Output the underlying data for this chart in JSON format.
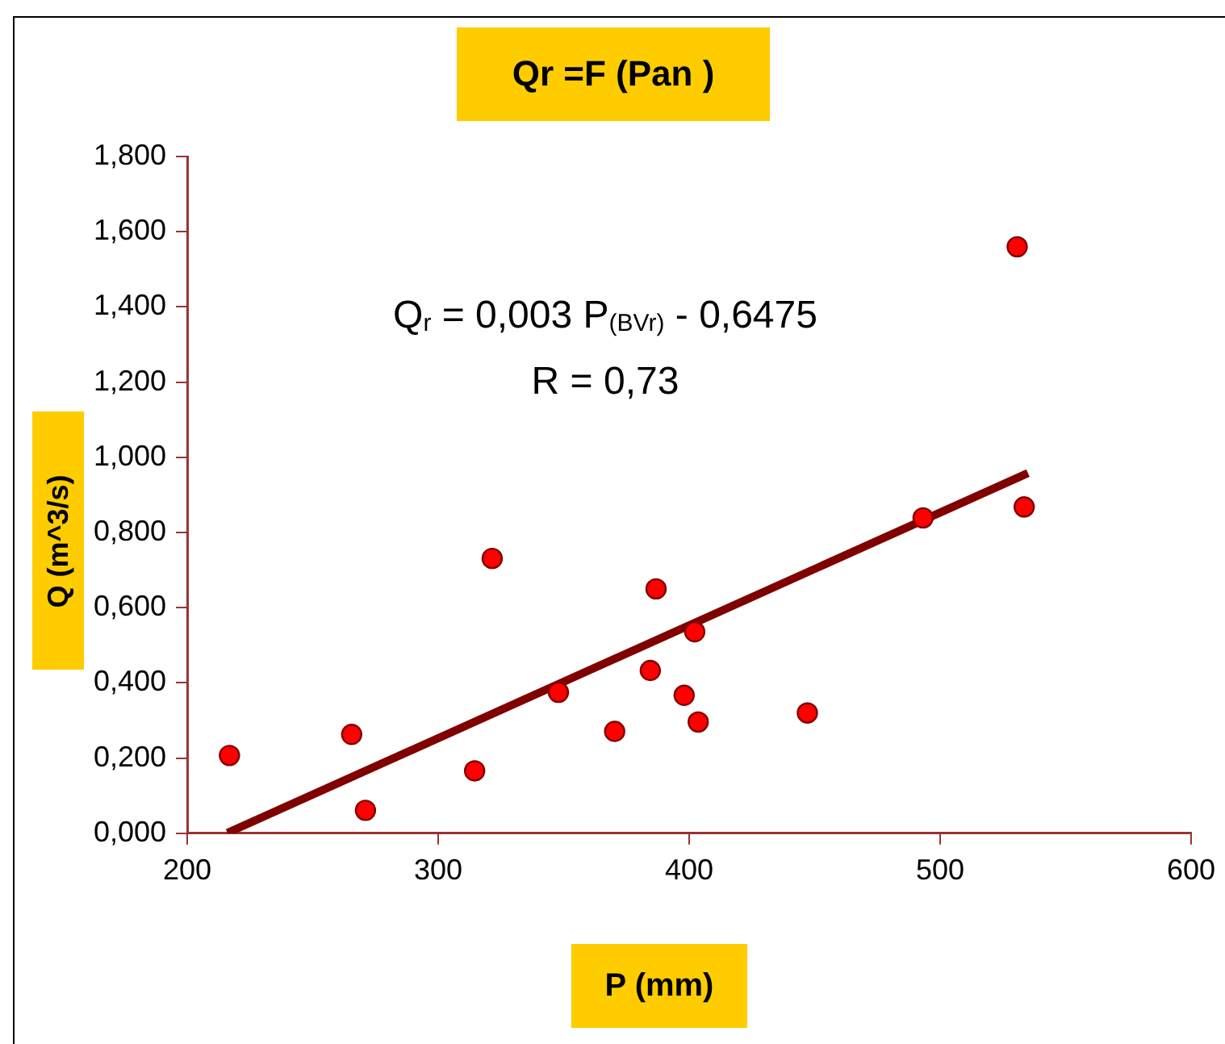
{
  "chart_data": {
    "type": "scatter",
    "title": "Qr =F (Pan )",
    "xlabel": "P (mm)",
    "ylabel": "Q (m^3/s)",
    "annotations": [
      "Q$_{r}$ = 0,003 P$_{(BVr)}$ - 0,6475",
      "R = 0,73"
    ],
    "xlim": [
      200,
      600
    ],
    "xticks": [
      200,
      300,
      400,
      500,
      600
    ],
    "ylim": [
      0,
      1.8
    ],
    "yticks": [
      {
        "value": 0,
        "label": "0,000"
      },
      {
        "value": 0.2,
        "label": "0,200"
      },
      {
        "value": 0.4,
        "label": "0,400"
      },
      {
        "value": 0.6,
        "label": "0,600"
      },
      {
        "value": 0.8,
        "label": "0,800"
      },
      {
        "value": 1,
        "label": "1,000"
      },
      {
        "value": 1.2,
        "label": "1,200"
      },
      {
        "value": 1.4,
        "label": "1,400"
      },
      {
        "value": 1.6,
        "label": "1,600"
      },
      {
        "value": 1.8,
        "label": "1,800"
      }
    ],
    "grid": false,
    "legend": false,
    "marker": "circle",
    "series": [
      {
        "type": "scatter",
        "color": "#ff0000",
        "x": [
          216.8,
          265.5,
          271,
          314.5,
          321.5,
          347.9,
          370.3,
          384.5,
          386.8,
          398,
          402.2,
          403.6,
          447.1,
          493.2,
          533.5,
          530.7
        ],
        "values": [
          0.207,
          0.263,
          0.061,
          0.166,
          0.731,
          0.375,
          0.271,
          0.433,
          0.65,
          0.367,
          0.536,
          0.296,
          0.32,
          0.839,
          0.868,
          1.56
        ]
      },
      {
        "type": "line",
        "color": "#800000",
        "x": [
          216,
          535
        ],
        "values": [
          0.001,
          0.958
        ],
        "marker": "none"
      }
    ]
  }
}
